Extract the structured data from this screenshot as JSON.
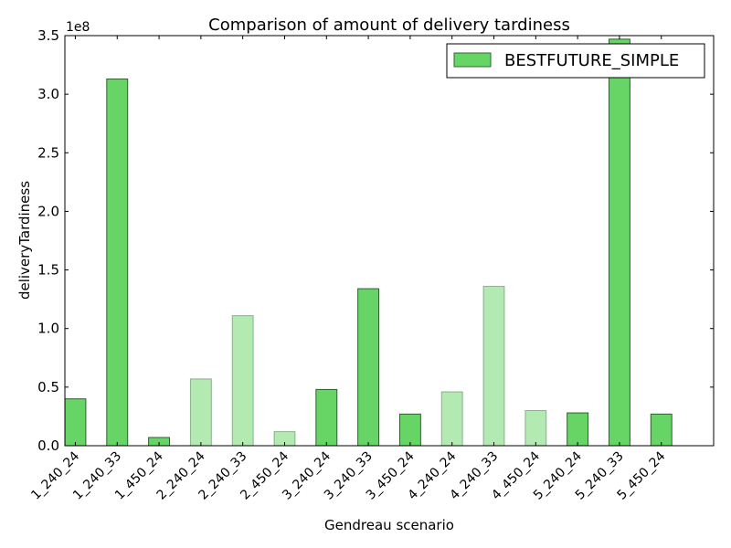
{
  "chart_data": {
    "type": "bar",
    "title": "Comparison of amount of delivery tardiness",
    "xlabel": "Gendreau scenario",
    "ylabel": "deliveryTardiness",
    "y_multiplier_label": "1e8",
    "ylim": [
      0,
      3.5
    ],
    "xlim": [
      0,
      15.5
    ],
    "yticks": [
      "0.0",
      "0.5",
      "1.0",
      "1.5",
      "2.0",
      "2.5",
      "3.0",
      "3.5"
    ],
    "grid": false,
    "legend_position": "top-right",
    "categories": [
      "1_240_24",
      "1_240_33",
      "1_450_24",
      "2_240_24",
      "2_240_33",
      "2_450_24",
      "3_240_24",
      "3_240_33",
      "3_450_24",
      "4_240_24",
      "4_240_33",
      "4_450_24",
      "5_240_24",
      "5_240_33",
      "5_450_24"
    ],
    "series": [
      {
        "name": "BESTFUTURE_SIMPLE",
        "color": "#66d566",
        "values": [
          0.4,
          3.13,
          0.07,
          0.57,
          1.11,
          0.12,
          0.48,
          1.34,
          0.27,
          0.46,
          1.36,
          0.3,
          0.28,
          3.47,
          0.27
        ],
        "faded": [
          false,
          false,
          false,
          true,
          true,
          true,
          false,
          false,
          false,
          true,
          true,
          true,
          false,
          false,
          false
        ]
      }
    ]
  }
}
